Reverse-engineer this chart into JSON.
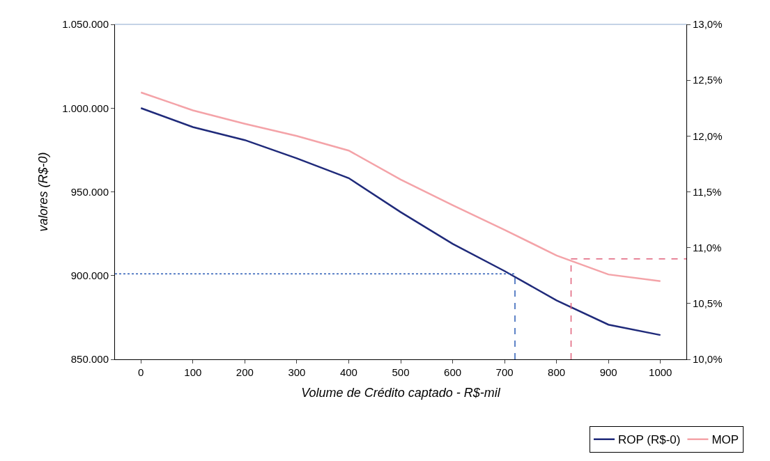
{
  "chart_data": {
    "type": "line",
    "xlabel": "Volume de Crédito captado - R$-mil",
    "ylabel": "valores (R$-0)",
    "x": [
      0,
      100,
      200,
      300,
      400,
      500,
      600,
      700,
      800,
      900,
      1000
    ],
    "series": [
      {
        "name": "ROP (R$-0)",
        "color": "#1f2a7a",
        "values": [
          1000000,
          988700,
          980900,
          970000,
          958200,
          937900,
          919000,
          902700,
          885200,
          870700,
          864500
        ]
      },
      {
        "name": "MOP",
        "color": "#f4a3a8",
        "axis": "y2",
        "values": [
          12.39,
          12.23,
          12.11,
          12.0,
          11.87,
          11.61,
          11.38,
          11.16,
          10.93,
          10.76,
          10.7
        ]
      }
    ],
    "xlim": [
      -50,
      1050
    ],
    "xticks": [
      0,
      100,
      200,
      300,
      400,
      500,
      600,
      700,
      800,
      900,
      1000
    ],
    "ylim": [
      850000,
      1050000
    ],
    "yticks": [
      {
        "value": 850000,
        "label": "850.000"
      },
      {
        "value": 900000,
        "label": "900.000"
      },
      {
        "value": 950000,
        "label": "950.000"
      },
      {
        "value": 1000000,
        "label": "1.000.000"
      },
      {
        "value": 1050000,
        "label": "1.050.000"
      }
    ],
    "y2lim": [
      10,
      13
    ],
    "y2ticks": [
      {
        "value": 10,
        "label": "10,0%"
      },
      {
        "value": 10.5,
        "label": "10,5%"
      },
      {
        "value": 11,
        "label": "11,0%"
      },
      {
        "value": 11.5,
        "label": "11,5%"
      },
      {
        "value": 12,
        "label": "12,0%"
      },
      {
        "value": 12.5,
        "label": "12,5%"
      },
      {
        "value": 13,
        "label": "13,0%"
      }
    ],
    "ref_lines": [
      {
        "axis": "x",
        "value": 720,
        "color": "#2a5bb5",
        "line_style": "dashed"
      },
      {
        "axis": "y",
        "value": 901000,
        "color": "#2a5bb5",
        "line_style": "dotted"
      },
      {
        "axis": "x",
        "value": 828,
        "color": "#e0607a",
        "line_style": "dashed"
      },
      {
        "axis": "y2",
        "value": 10.9,
        "color": "#e0607a",
        "line_style": "dashed"
      }
    ],
    "legend": "bottom right",
    "marker": "none",
    "line_style": "solid"
  }
}
